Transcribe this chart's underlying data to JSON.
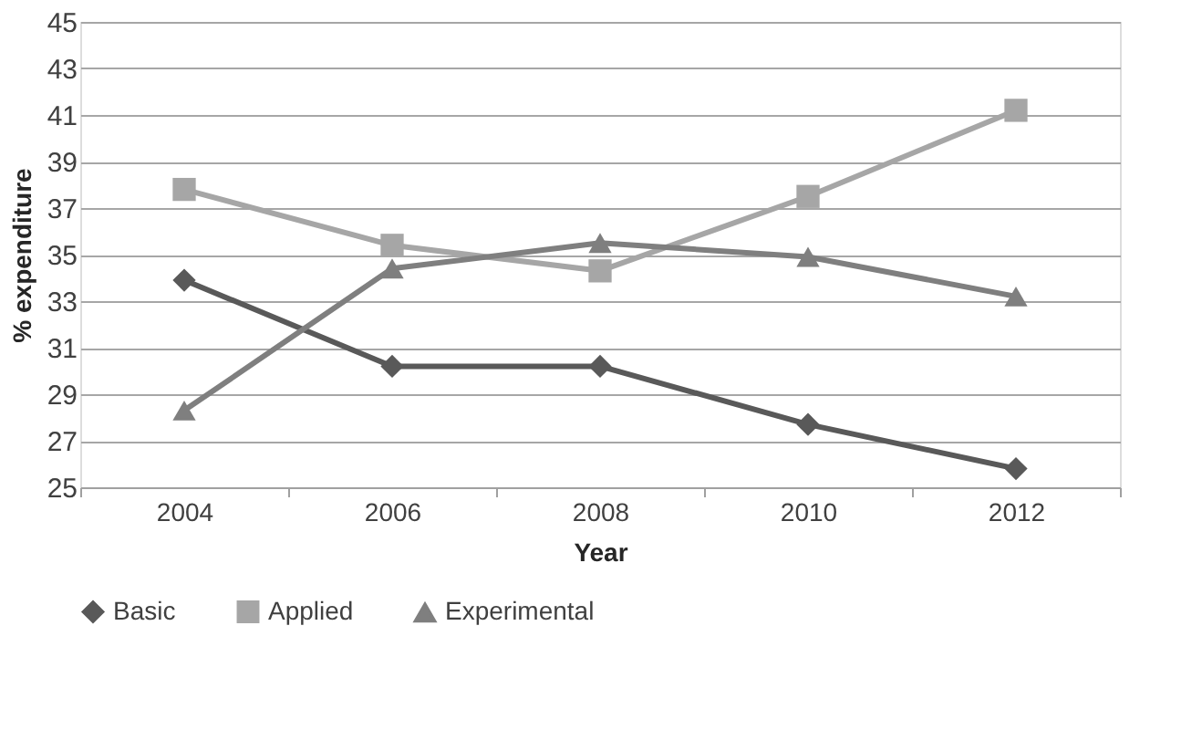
{
  "chart_data": {
    "type": "line",
    "xlabel": "Year",
    "ylabel": "% expenditure",
    "categories": [
      "2004",
      "2006",
      "2008",
      "2010",
      "2012"
    ],
    "series": [
      {
        "name": "Basic",
        "color": "#595959",
        "marker": "diamond",
        "values": [
          33.9,
          30.2,
          30.2,
          27.7,
          25.8
        ]
      },
      {
        "name": "Applied",
        "color": "#a6a6a6",
        "marker": "square",
        "values": [
          37.8,
          35.4,
          34.3,
          37.5,
          41.2
        ]
      },
      {
        "name": "Experimental",
        "color": "#7f7f7f",
        "marker": "triangle",
        "values": [
          28.3,
          34.4,
          35.5,
          34.9,
          33.2
        ]
      }
    ],
    "ylim": [
      25,
      45
    ],
    "yticks": [
      25,
      27,
      29,
      31,
      33,
      35,
      37,
      39,
      41,
      43,
      45
    ],
    "grid": "y",
    "legend": "bottom",
    "line_style": "solid"
  }
}
